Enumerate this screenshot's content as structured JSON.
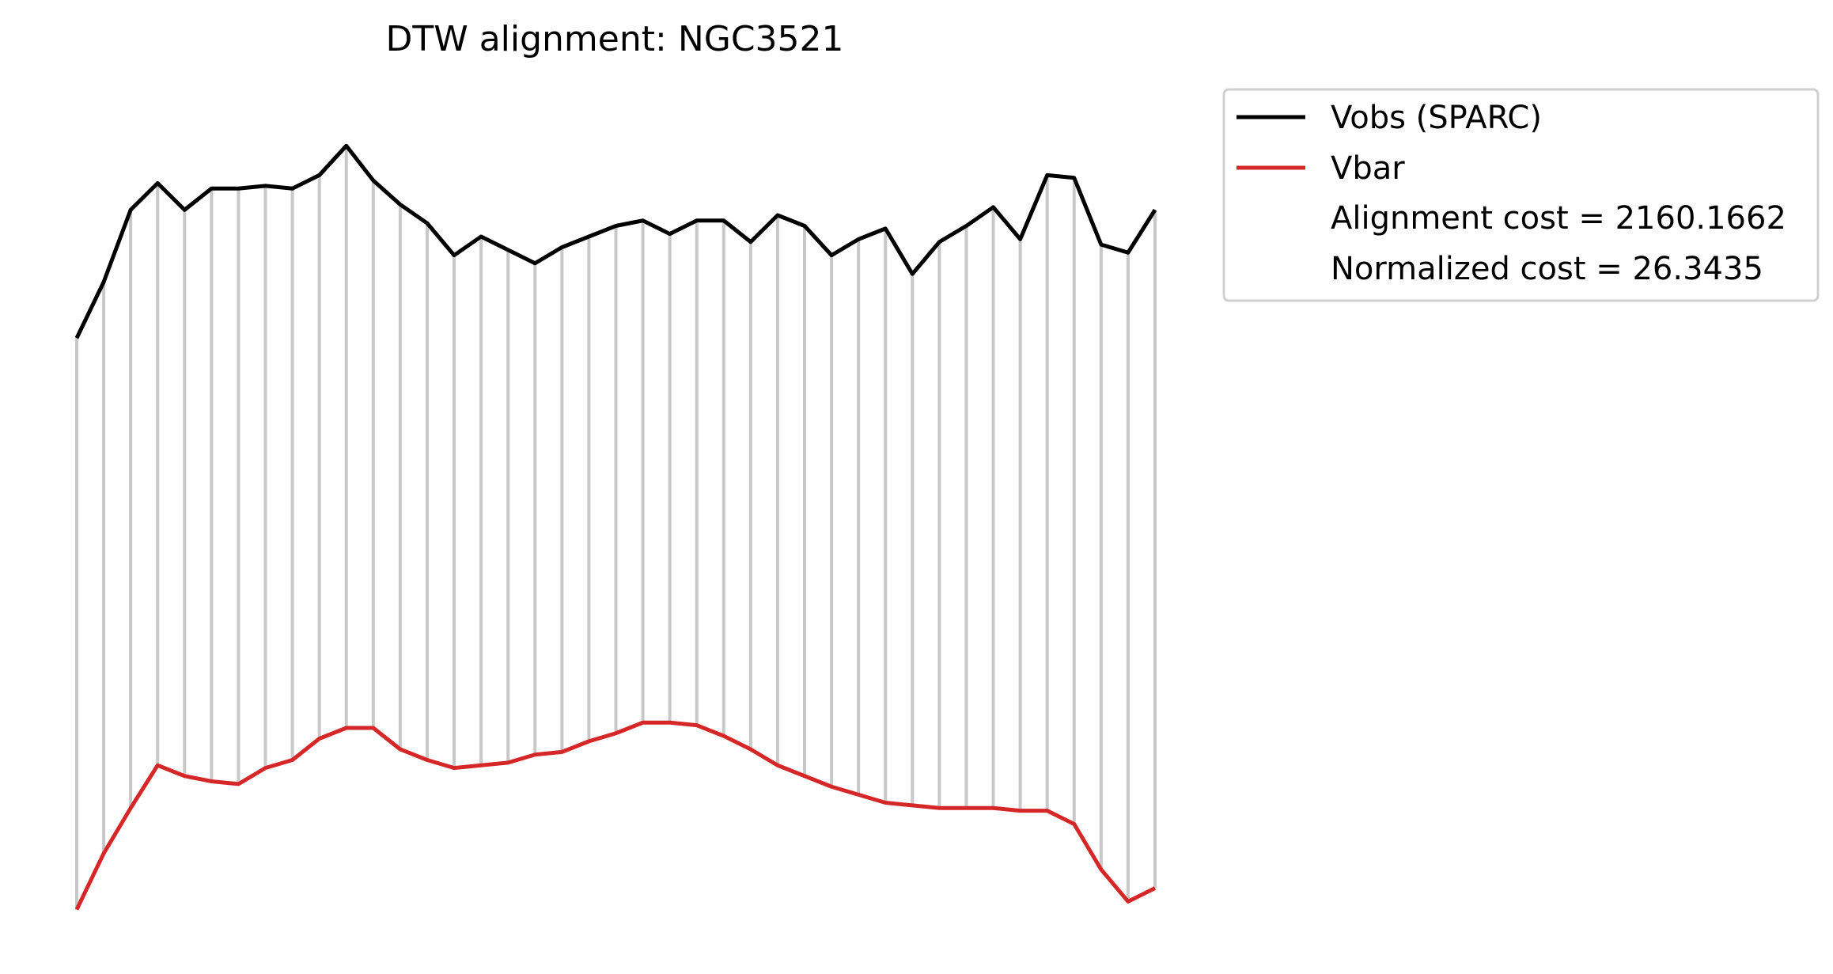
{
  "chart_data": {
    "type": "line",
    "title": "DTW alignment: NGC3521",
    "xlabel": "",
    "ylabel": "",
    "axes_visible": false,
    "grid": false,
    "legend_position": "upper-right-outside",
    "ylim": [
      -60,
      260
    ],
    "series": [
      {
        "name": "Vobs (SPARC)",
        "color": "#000000",
        "values": [
          166,
          187,
          214,
          224,
          214,
          222,
          222,
          223,
          222,
          227,
          238,
          225,
          216,
          209,
          197,
          204,
          199,
          194,
          200,
          204,
          208,
          210,
          205,
          210,
          210,
          202,
          212,
          208,
          197,
          203,
          207,
          190,
          202,
          208,
          215,
          203,
          227,
          226,
          201,
          198,
          214
        ]
      },
      {
        "name": "Vbar",
        "color": "#d62728",
        "values": [
          -48,
          -27,
          -10,
          6,
          2,
          0,
          -1,
          5,
          8,
          16,
          20,
          20,
          12,
          8,
          5,
          6,
          7,
          10,
          11,
          15,
          18,
          22,
          22,
          21,
          17,
          12,
          6,
          2,
          -2,
          -5,
          -8,
          -9,
          -10,
          -10,
          -10,
          -11,
          -11,
          -16,
          -33,
          -45,
          -40
        ]
      }
    ],
    "alignment_color": "#c8c8c8",
    "annotations": [
      "Alignment cost = 2160.1662",
      "Normalized cost = 26.3435"
    ]
  }
}
